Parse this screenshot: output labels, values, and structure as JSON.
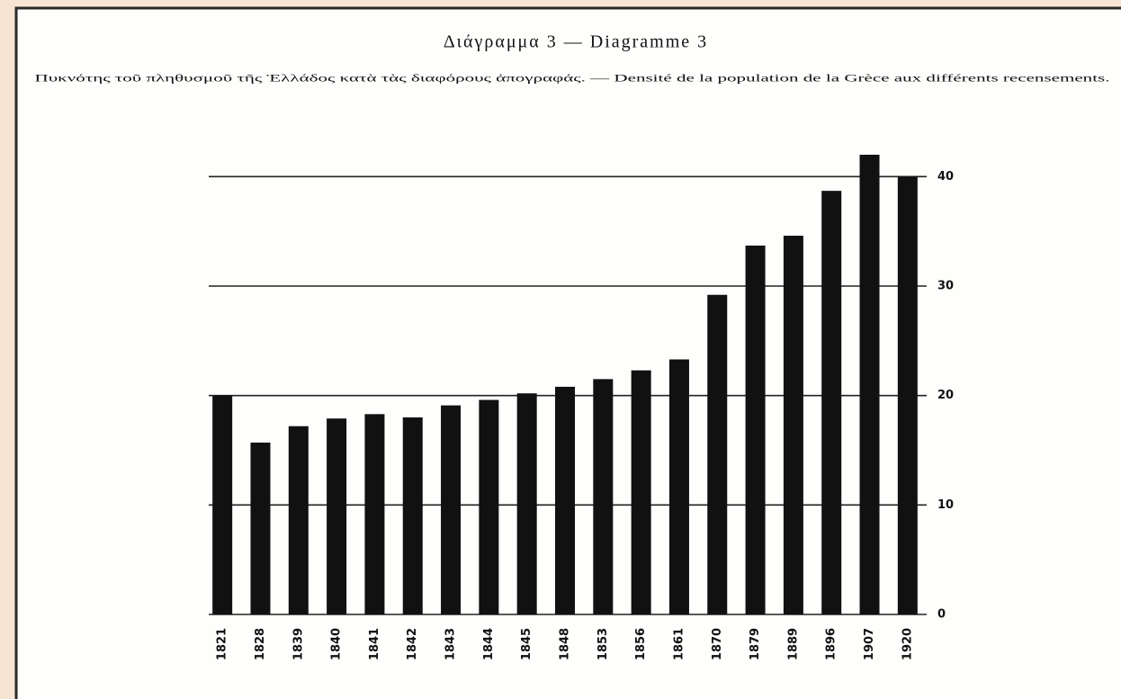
{
  "chart_data": {
    "type": "bar",
    "title": "Διάγραμμα 3 — Diagramme 3",
    "subtitle": "Πυκνότης τοῦ πληθυσμοῦ τῆς Ἑλλάδος κατὰ τὰς διαφόρους ἀπογραφάς. — Densité de la population de la Grèce aux différents recensements.",
    "categories": [
      "1821",
      "1828",
      "1839",
      "1840",
      "1841",
      "1842",
      "1843",
      "1844",
      "1845",
      "1848",
      "1853",
      "1856",
      "1861",
      "1870",
      "1879",
      "1889",
      "1896",
      "1907",
      "1920"
    ],
    "values": [
      20.0,
      15.7,
      17.2,
      17.9,
      18.3,
      18.0,
      19.1,
      19.6,
      20.2,
      20.8,
      21.5,
      22.3,
      23.3,
      29.2,
      33.7,
      34.6,
      38.7,
      42.0,
      40.0
    ],
    "color": "#111111",
    "ylim": [
      0,
      42
    ],
    "yticks": [
      0,
      10,
      20,
      30,
      40
    ],
    "grid": true,
    "y_axis_side": "right"
  }
}
